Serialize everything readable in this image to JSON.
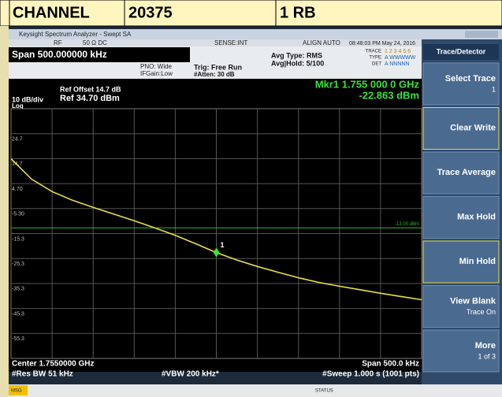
{
  "header": {
    "cells": [
      "CHANNEL",
      "20375",
      "1 RB"
    ]
  },
  "window": {
    "title": "Keysight Spectrum Analyzer - Swept SA",
    "rf": "RF",
    "input": "50 Ω  DC",
    "sense": "SENSE:INT",
    "align": "ALIGN AUTO",
    "clock": "08:48:03 PM May 24, 2016"
  },
  "settings": {
    "span": "Span 500.000000 kHz",
    "pno": "PNO: Wide",
    "ifgain": "IFGain:Low",
    "trig": "Trig: Free Run",
    "atten": "#Atten: 30 dB",
    "avg_type": "Avg Type: RMS",
    "avg_hold": "Avg|Hold: 5/100",
    "trace": "TRACE",
    "type": "TYPE",
    "det": "DET",
    "trace_nums": "1 2 3 4 5 6",
    "type_vals": "A WWWWW",
    "det_vals": "A NNNNN"
  },
  "plot": {
    "ref_offset": "Ref Offset 14.7 dB",
    "scale": "10 dB/div",
    "ref": "Ref 34.70 dBm",
    "log": "Log",
    "marker_freq": "Mkr1 1.755 000 0 GHz",
    "marker_level": "-22.863 dBm",
    "center": "Center 1.7550000 GHz",
    "rbw": "#Res BW 51 kHz",
    "vbw": "#VBW 200 kHz*",
    "span": "Span 500.0 kHz",
    "sweep": "#Sweep  1.000 s (1001 pts)",
    "ylim": [
      -65.3,
      34.7
    ],
    "yticks": [
      24.7,
      14.7,
      {
        "value": 4.7,
        "label": "4.70"
      },
      {
        "value": -5.3,
        "label": "-5.30"
      },
      -15.3,
      -25.3,
      -35.3,
      -45.3,
      -55.3
    ],
    "xlim": [
      0,
      1000
    ],
    "display_line": {
      "value": -13,
      "label": "-13.00 dBm"
    },
    "trace": {
      "color": "#e8e040",
      "x": [
        0,
        50,
        100,
        150,
        200,
        250,
        300,
        350,
        400,
        450,
        500,
        550,
        600,
        650,
        700,
        750,
        800,
        850,
        900,
        950,
        1000
      ],
      "values": [
        14.7,
        6.5,
        1.5,
        -2.0,
        -4.8,
        -7.5,
        -10.2,
        -13.0,
        -16.0,
        -19.4,
        -22.9,
        -25.9,
        -28.5,
        -30.8,
        -33.0,
        -34.9,
        -36.4,
        -37.8,
        -39.2,
        -40.5,
        -41.8
      ]
    },
    "marker": {
      "label": "1",
      "x": 500,
      "value": -22.863
    }
  },
  "softkeys": {
    "title": "Trace/Detector",
    "keys": [
      {
        "label": "Select Trace",
        "sub": "1"
      },
      {
        "label": "Clear Write"
      },
      {
        "label": "Trace Average"
      },
      {
        "label": "Max Hold"
      },
      {
        "label": "Min Hold"
      },
      {
        "label": "View Blank",
        "sub": "Trace On"
      },
      {
        "label": "More",
        "sub": "1 of 3"
      }
    ]
  },
  "statusbar": {
    "msg": "MSG",
    "status": "STATUS"
  }
}
